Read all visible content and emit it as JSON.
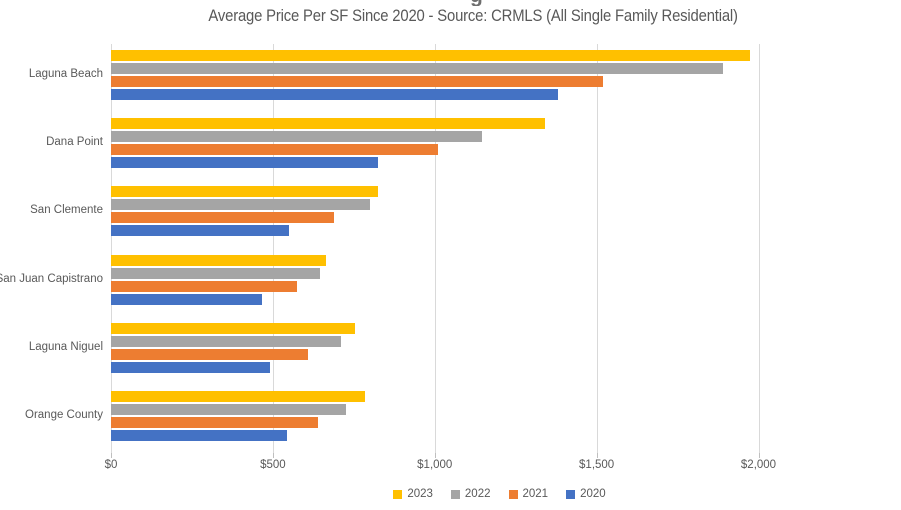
{
  "header": {
    "clipped_title_fragment": "g"
  },
  "chart_data": {
    "type": "bar",
    "orientation": "horizontal",
    "title": "Average Price Per SF Since 2020 - Source: CRMLS (All Single Family Residential)",
    "xlabel": "",
    "ylabel": "",
    "categories": [
      "Laguna Beach",
      "Dana Point",
      "San Clemente",
      "San Juan Capistrano",
      "Laguna Niguel",
      "Orange County"
    ],
    "series": [
      {
        "name": "2023",
        "color": "#FFC000",
        "values": [
          1975,
          1340,
          825,
          665,
          755,
          785
        ]
      },
      {
        "name": "2022",
        "color": "#A5A5A5",
        "values": [
          1890,
          1145,
          800,
          645,
          710,
          725
        ]
      },
      {
        "name": "2021",
        "color": "#ED7D31",
        "values": [
          1520,
          1010,
          690,
          575,
          610,
          640
        ]
      },
      {
        "name": "2020",
        "color": "#4472C4",
        "values": [
          1380,
          825,
          550,
          465,
          490,
          545
        ]
      }
    ],
    "x_axis": {
      "tick_labels": [
        "$0",
        "$500",
        "$1,000",
        "$1,500",
        "$2,000"
      ],
      "tick_values": [
        0,
        500,
        1000,
        1500,
        2000
      ],
      "xlim": [
        0,
        2400
      ]
    },
    "legend": {
      "position": "bottom",
      "entries": [
        "2023",
        "2022",
        "2021",
        "2020"
      ]
    },
    "grid": true,
    "colors": {
      "text": "#595959",
      "gridline": "#D9D9D9",
      "tick": "#BFBFBF",
      "background": "#FFFFFF"
    }
  }
}
